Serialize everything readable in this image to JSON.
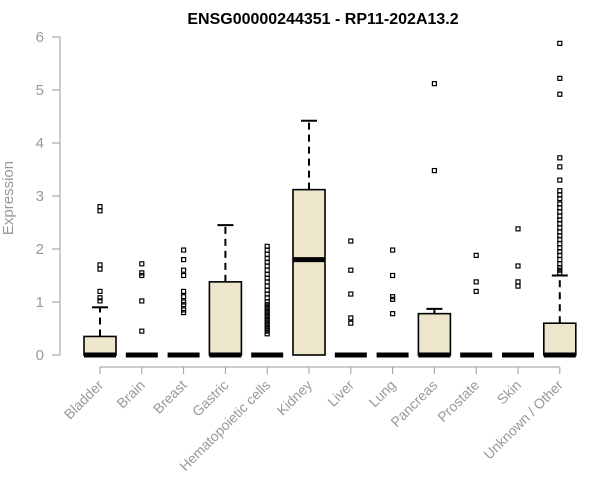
{
  "chart_data": {
    "type": "box",
    "title": "ENSG00000244351 - RP11-202A13.2",
    "xlabel": "",
    "ylabel": "Expression",
    "ylim": [
      0,
      6
    ],
    "yticks": [
      0,
      1,
      2,
      3,
      4,
      5,
      6
    ],
    "grid": false,
    "box_fill": "#ede6cc",
    "categories": [
      "Bladder",
      "Brain",
      "Breast",
      "Gastric",
      "Hematopoietic cells",
      "Kidney",
      "Liver",
      "Lung",
      "Pancreas",
      "Prostate",
      "Skin",
      "Unknown / Other"
    ],
    "boxes": [
      {
        "q1": 0,
        "median": 0,
        "q3": 0.35,
        "whisker_low": 0,
        "whisker_high": 0.9,
        "outliers": [
          2.8,
          2.72,
          1.7,
          1.62,
          1.2,
          1.08,
          1.02
        ]
      },
      {
        "q1": 0,
        "median": 0,
        "q3": 0,
        "whisker_low": 0,
        "whisker_high": 0,
        "outliers": [
          1.72,
          1.55,
          1.5,
          1.02,
          0.45
        ]
      },
      {
        "q1": 0,
        "median": 0,
        "q3": 0,
        "whisker_low": 0,
        "whisker_high": 0,
        "outliers": [
          1.98,
          1.8,
          1.6,
          1.5,
          1.2,
          1.1,
          1.0,
          0.95,
          0.85,
          0.8
        ]
      },
      {
        "q1": 0,
        "median": 0,
        "q3": 1.38,
        "whisker_low": 0,
        "whisker_high": 2.45,
        "outliers": []
      },
      {
        "q1": 0,
        "median": 0,
        "q3": 0,
        "whisker_low": 0,
        "whisker_high": 0,
        "outliers": [
          2.05,
          1.98,
          1.9,
          1.82,
          1.75,
          1.68,
          1.6,
          1.52,
          1.45,
          1.38,
          1.3,
          1.22,
          1.15,
          1.08,
          1.0,
          0.95,
          0.9,
          0.85,
          0.8,
          0.75,
          0.7,
          0.65,
          0.6,
          0.55,
          0.5,
          0.45,
          0.4
        ]
      },
      {
        "q1": 0,
        "median": 1.8,
        "q3": 3.12,
        "whisker_low": 0,
        "whisker_high": 4.42,
        "outliers": []
      },
      {
        "q1": 0,
        "median": 0,
        "q3": 0,
        "whisker_low": 0,
        "whisker_high": 0,
        "outliers": [
          2.15,
          1.6,
          1.15,
          0.7,
          0.6
        ]
      },
      {
        "q1": 0,
        "median": 0,
        "q3": 0,
        "whisker_low": 0,
        "whisker_high": 0,
        "outliers": [
          1.98,
          1.5,
          1.1,
          1.05,
          0.78
        ]
      },
      {
        "q1": 0,
        "median": 0,
        "q3": 0.78,
        "whisker_low": 0,
        "whisker_high": 0.87,
        "outliers": [
          5.12,
          3.48
        ]
      },
      {
        "q1": 0,
        "median": 0,
        "q3": 0,
        "whisker_low": 0,
        "whisker_high": 0,
        "outliers": [
          1.88,
          1.38,
          1.2
        ]
      },
      {
        "q1": 0,
        "median": 0,
        "q3": 0,
        "whisker_low": 0,
        "whisker_high": 0,
        "outliers": [
          2.38,
          1.68,
          1.38,
          1.3
        ]
      },
      {
        "q1": 0,
        "median": 0,
        "q3": 0.6,
        "whisker_low": 0,
        "whisker_high": 1.5,
        "outliers": [
          5.88,
          5.22,
          4.92,
          3.72,
          3.55,
          3.3,
          3.1,
          3.02,
          2.95,
          2.85,
          2.78,
          2.7,
          2.62,
          2.55,
          2.48,
          2.4,
          2.32,
          2.25,
          2.18,
          2.1,
          2.02,
          1.95,
          1.88,
          1.8,
          1.72,
          1.65,
          1.6,
          1.55
        ]
      }
    ]
  }
}
